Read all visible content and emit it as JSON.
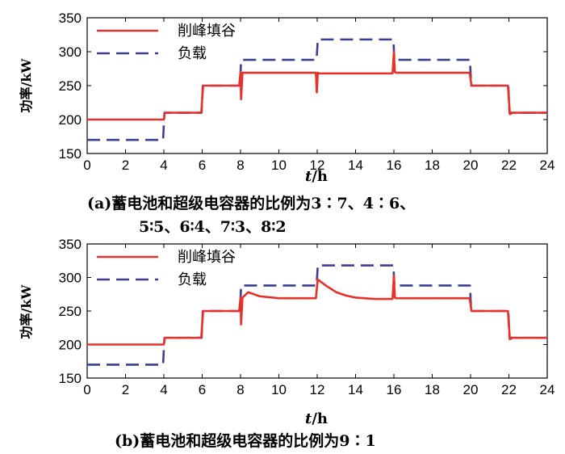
{
  "chart_data": [
    {
      "type": "line",
      "caption_line1": "(a)蓄电池和超级电容器的比例为3∶7、4∶6、",
      "caption_line2": "5∶5、6∶4、7∶3、8∶2",
      "xlabel_italic": "t",
      "xlabel_rest": "/h",
      "ylabel": "功率/kW",
      "xlim": [
        0,
        24
      ],
      "ylim": [
        150,
        350
      ],
      "xticks": [
        0,
        2,
        4,
        6,
        8,
        10,
        12,
        14,
        16,
        18,
        20,
        22,
        24
      ],
      "yticks": [
        150,
        200,
        250,
        300,
        350
      ],
      "legend_position": "top-left",
      "series": [
        {
          "name": "削峰填谷",
          "color": "#e8312a",
          "style": "solid",
          "points": [
            [
              0,
              200
            ],
            [
              3.95,
              200
            ],
            [
              4.0,
              200
            ],
            [
              4.05,
              210
            ],
            [
              5.95,
              210
            ],
            [
              6.05,
              250
            ],
            [
              7.93,
              250
            ],
            [
              8.0,
              270
            ],
            [
              8.03,
              230
            ],
            [
              8.1,
              269
            ],
            [
              11.93,
              269
            ],
            [
              11.98,
              240
            ],
            [
              12.03,
              269
            ],
            [
              12.1,
              268
            ],
            [
              15.93,
              268
            ],
            [
              16.0,
              300
            ],
            [
              16.05,
              270
            ],
            [
              16.12,
              269
            ],
            [
              19.95,
              269
            ],
            [
              20.05,
              250
            ],
            [
              21.95,
              250
            ],
            [
              22.05,
              208
            ],
            [
              22.2,
              210
            ],
            [
              24,
              210
            ]
          ]
        },
        {
          "name": "负载",
          "color": "#3a3f91",
          "style": "dashed",
          "points": [
            [
              0,
              170
            ],
            [
              3.96,
              170
            ],
            [
              4.03,
              210
            ],
            [
              5.97,
              210
            ],
            [
              6.03,
              250
            ],
            [
              7.97,
              250
            ],
            [
              8.03,
              288
            ],
            [
              11.97,
              288
            ],
            [
              12.03,
              318
            ],
            [
              15.97,
              318
            ],
            [
              16.03,
              288
            ],
            [
              19.97,
              288
            ],
            [
              20.03,
              250
            ],
            [
              21.97,
              250
            ],
            [
              22.03,
              210
            ],
            [
              24,
              210
            ]
          ]
        }
      ]
    },
    {
      "type": "line",
      "caption_line1": "(b)蓄电池和超级电容器的比例为9∶1",
      "caption_line2": "",
      "xlabel_italic": "t",
      "xlabel_rest": "/h",
      "ylabel": "功率/kW",
      "xlim": [
        0,
        24
      ],
      "ylim": [
        150,
        350
      ],
      "xticks": [
        0,
        2,
        4,
        6,
        8,
        10,
        12,
        14,
        16,
        18,
        20,
        22,
        24
      ],
      "yticks": [
        150,
        200,
        250,
        300,
        350
      ],
      "legend_position": "top-left",
      "series": [
        {
          "name": "削峰填谷",
          "color": "#e8312a",
          "style": "solid",
          "points": [
            [
              0,
              200
            ],
            [
              3.95,
              200
            ],
            [
              4.0,
              200
            ],
            [
              4.05,
              210
            ],
            [
              5.95,
              210
            ],
            [
              6.05,
              250
            ],
            [
              7.93,
              250
            ],
            [
              8.0,
              270
            ],
            [
              8.03,
              230
            ],
            [
              8.1,
              270
            ],
            [
              8.4,
              278
            ],
            [
              9,
              272
            ],
            [
              10,
              269
            ],
            [
              11.93,
              269
            ],
            [
              12.03,
              297
            ],
            [
              12.5,
              287
            ],
            [
              13,
              278
            ],
            [
              13.5,
              273
            ],
            [
              14,
              270
            ],
            [
              15,
              268
            ],
            [
              15.93,
              268
            ],
            [
              16.0,
              303
            ],
            [
              16.05,
              270
            ],
            [
              16.12,
              269
            ],
            [
              19.95,
              269
            ],
            [
              20.05,
              250
            ],
            [
              21.95,
              250
            ],
            [
              22.05,
              208
            ],
            [
              22.2,
              210
            ],
            [
              24,
              210
            ]
          ]
        },
        {
          "name": "负载",
          "color": "#3a3f91",
          "style": "dashed",
          "points": [
            [
              0,
              170
            ],
            [
              3.96,
              170
            ],
            [
              4.03,
              210
            ],
            [
              5.97,
              210
            ],
            [
              6.03,
              250
            ],
            [
              7.97,
              250
            ],
            [
              8.03,
              288
            ],
            [
              11.97,
              288
            ],
            [
              12.03,
              318
            ],
            [
              15.97,
              318
            ],
            [
              16.03,
              288
            ],
            [
              19.97,
              288
            ],
            [
              20.03,
              250
            ],
            [
              21.97,
              250
            ],
            [
              22.03,
              210
            ],
            [
              24,
              210
            ]
          ]
        }
      ]
    }
  ]
}
